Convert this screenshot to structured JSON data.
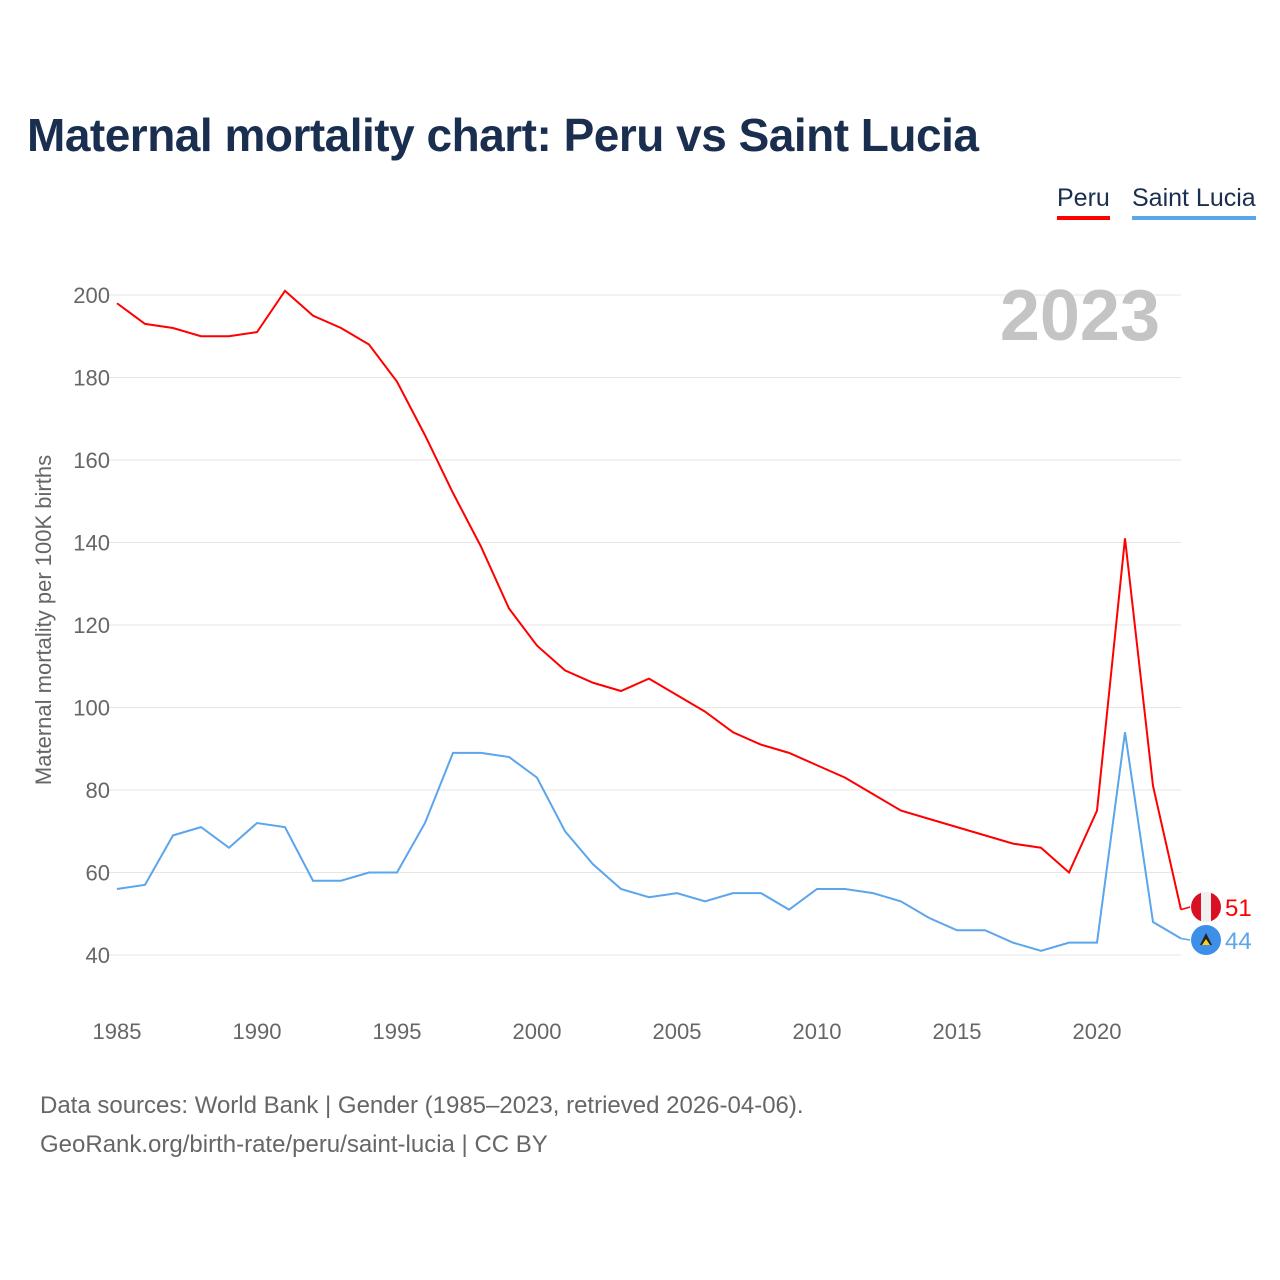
{
  "chart_data": {
    "type": "line",
    "title": "Maternal mortality chart: Peru vs Saint Lucia",
    "ylabel": "Maternal mortality per 100K births",
    "xlabel": "",
    "year_label": "2023",
    "ylim": [
      30,
      205
    ],
    "xlim": [
      1985,
      2023
    ],
    "yticks": [
      40,
      60,
      80,
      100,
      120,
      140,
      160,
      180,
      200
    ],
    "xticks": [
      1985,
      1990,
      1995,
      2000,
      2005,
      2010,
      2015,
      2020
    ],
    "legend_placement": "top-right",
    "x": [
      1985,
      1986,
      1987,
      1988,
      1989,
      1990,
      1991,
      1992,
      1993,
      1994,
      1995,
      1996,
      1997,
      1998,
      1999,
      2000,
      2001,
      2002,
      2003,
      2004,
      2005,
      2006,
      2007,
      2008,
      2009,
      2010,
      2011,
      2012,
      2013,
      2014,
      2015,
      2016,
      2017,
      2018,
      2019,
      2020,
      2021,
      2022,
      2023
    ],
    "series": [
      {
        "name": "Peru",
        "color": "#ff0000",
        "end_label": "51",
        "values": [
          198,
          193,
          192,
          190,
          190,
          191,
          201,
          195,
          192,
          188,
          179,
          166,
          152,
          139,
          124,
          115,
          109,
          106,
          104,
          107,
          103,
          99,
          94,
          91,
          89,
          86,
          83,
          79,
          75,
          73,
          71,
          69,
          67,
          66,
          60,
          75,
          141,
          81,
          51
        ]
      },
      {
        "name": "Saint Lucia",
        "color": "#5aa5ec",
        "end_label": "44",
        "values": [
          56,
          57,
          69,
          71,
          66,
          72,
          71,
          58,
          58,
          60,
          60,
          72,
          89,
          89,
          88,
          83,
          70,
          62,
          56,
          54,
          55,
          53,
          55,
          55,
          51,
          56,
          56,
          55,
          53,
          49,
          46,
          46,
          43,
          41,
          43,
          43,
          94,
          48,
          44
        ]
      }
    ]
  },
  "footer": {
    "line1": "Data sources: World Bank | Gender (1985–2023, retrieved 2026-04-06).",
    "line2": "GeoRank.org/birth-rate/peru/saint-lucia | CC BY"
  }
}
